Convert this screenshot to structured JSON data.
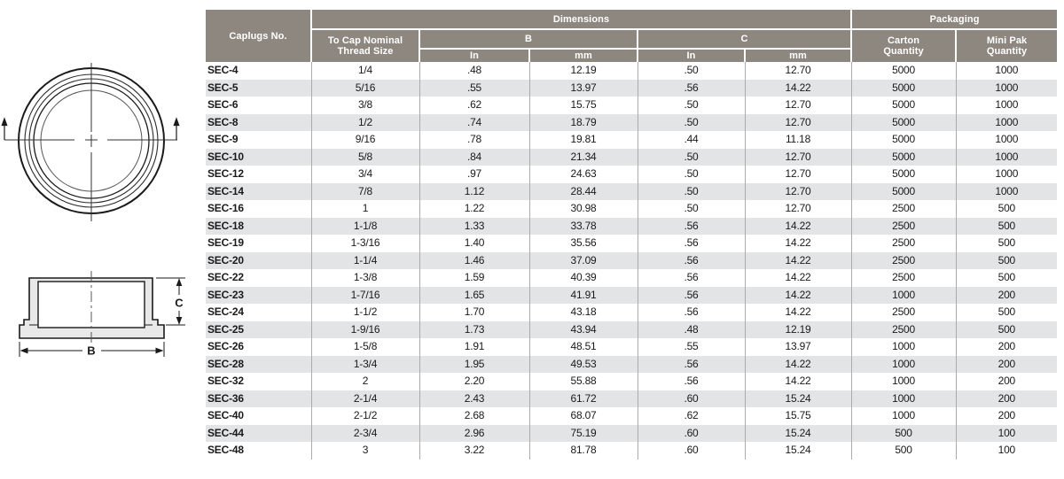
{
  "colors": {
    "header_bg": "#8D8780",
    "row_stripe": "#E3E4E6",
    "grid_line": "#ABABAB",
    "drawing_fill": "#E8E8E8",
    "text": "#1A1A1A"
  },
  "diagram": {
    "b_label": "B",
    "c_label": "C"
  },
  "table": {
    "header": {
      "caplugs_no": "Caplugs No.",
      "dimensions": "Dimensions",
      "packaging": "Packaging",
      "thread_size": [
        "To Cap Nominal",
        "Thread Size"
      ],
      "b_label": "B",
      "c_label": "C",
      "in_label": "In",
      "mm_label": "mm",
      "carton": [
        "Carton",
        "Quantity"
      ],
      "mini_pak": [
        "Mini Pak",
        "Quantity"
      ]
    },
    "rows": [
      [
        "SEC-4",
        "1/4",
        ".48",
        "12.19",
        ".50",
        "12.70",
        "5000",
        "1000"
      ],
      [
        "SEC-5",
        "5/16",
        ".55",
        "13.97",
        ".56",
        "14.22",
        "5000",
        "1000"
      ],
      [
        "SEC-6",
        "3/8",
        ".62",
        "15.75",
        ".50",
        "12.70",
        "5000",
        "1000"
      ],
      [
        "SEC-8",
        "1/2",
        ".74",
        "18.79",
        ".50",
        "12.70",
        "5000",
        "1000"
      ],
      [
        "SEC-9",
        "9/16",
        ".78",
        "19.81",
        ".44",
        "11.18",
        "5000",
        "1000"
      ],
      [
        "SEC-10",
        "5/8",
        ".84",
        "21.34",
        ".50",
        "12.70",
        "5000",
        "1000"
      ],
      [
        "SEC-12",
        "3/4",
        ".97",
        "24.63",
        ".50",
        "12.70",
        "5000",
        "1000"
      ],
      [
        "SEC-14",
        "7/8",
        "1.12",
        "28.44",
        ".50",
        "12.70",
        "5000",
        "1000"
      ],
      [
        "SEC-16",
        "1",
        "1.22",
        "30.98",
        ".50",
        "12.70",
        "2500",
        "500"
      ],
      [
        "SEC-18",
        "1-1/8",
        "1.33",
        "33.78",
        ".56",
        "14.22",
        "2500",
        "500"
      ],
      [
        "SEC-19",
        "1-3/16",
        "1.40",
        "35.56",
        ".56",
        "14.22",
        "2500",
        "500"
      ],
      [
        "SEC-20",
        "1-1/4",
        "1.46",
        "37.09",
        ".56",
        "14.22",
        "2500",
        "500"
      ],
      [
        "SEC-22",
        "1-3/8",
        "1.59",
        "40.39",
        ".56",
        "14.22",
        "2500",
        "500"
      ],
      [
        "SEC-23",
        "1-7/16",
        "1.65",
        "41.91",
        ".56",
        "14.22",
        "1000",
        "200"
      ],
      [
        "SEC-24",
        "1-1/2",
        "1.70",
        "43.18",
        ".56",
        "14.22",
        "2500",
        "500"
      ],
      [
        "SEC-25",
        "1-9/16",
        "1.73",
        "43.94",
        ".48",
        "12.19",
        "2500",
        "500"
      ],
      [
        "SEC-26",
        "1-5/8",
        "1.91",
        "48.51",
        ".55",
        "13.97",
        "1000",
        "200"
      ],
      [
        "SEC-28",
        "1-3/4",
        "1.95",
        "49.53",
        ".56",
        "14.22",
        "1000",
        "200"
      ],
      [
        "SEC-32",
        "2",
        "2.20",
        "55.88",
        ".56",
        "14.22",
        "1000",
        "200"
      ],
      [
        "SEC-36",
        "2-1/4",
        "2.43",
        "61.72",
        ".60",
        "15.24",
        "1000",
        "200"
      ],
      [
        "SEC-40",
        "2-1/2",
        "2.68",
        "68.07",
        ".62",
        "15.75",
        "1000",
        "200"
      ],
      [
        "SEC-44",
        "2-3/4",
        "2.96",
        "75.19",
        ".60",
        "15.24",
        "500",
        "100"
      ],
      [
        "SEC-48",
        "3",
        "3.22",
        "81.78",
        ".60",
        "15.24",
        "500",
        "100"
      ]
    ]
  }
}
